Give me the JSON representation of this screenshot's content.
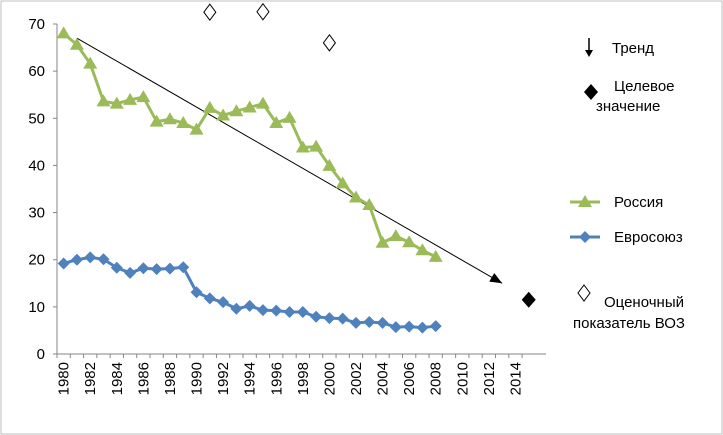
{
  "chart_data": {
    "type": "line",
    "x": [
      1980,
      1981,
      1982,
      1983,
      1984,
      1985,
      1986,
      1987,
      1988,
      1989,
      1990,
      1991,
      1992,
      1993,
      1994,
      1995,
      1996,
      1997,
      1998,
      1999,
      2000,
      2001,
      2002,
      2003,
      2004,
      2005,
      2006,
      2007,
      2008
    ],
    "xticks": [
      "1980",
      "1982",
      "1984",
      "1986",
      "1988",
      "1990",
      "1992",
      "1994",
      "1996",
      "1998",
      "2000",
      "2002",
      "2004",
      "2006",
      "2008",
      "2010",
      "2012",
      "2014"
    ],
    "yticks": [
      "0",
      "10",
      "20",
      "30",
      "40",
      "50",
      "60",
      "70"
    ],
    "xlim": [
      1979.5,
      2016.3
    ],
    "ylim": [
      0,
      70
    ],
    "series": [
      {
        "name": "Россия",
        "color": "#9bbb59",
        "marker": "triangle",
        "values": [
          68.0,
          65.6,
          61.6,
          53.6,
          53.1,
          53.9,
          54.5,
          49.3,
          49.8,
          49.0,
          47.6,
          52.2,
          50.6,
          51.5,
          52.3,
          53.1,
          49.0,
          50.1,
          43.8,
          44.0,
          39.9,
          36.2,
          33.2,
          31.6,
          23.6,
          25.0,
          23.7,
          22.0,
          20.6
        ]
      },
      {
        "name": "Евросоюз",
        "color": "#4f81bd",
        "marker": "diamond",
        "values": [
          19.2,
          20.0,
          20.5,
          20.1,
          18.3,
          17.2,
          18.2,
          18.0,
          18.1,
          18.4,
          13.1,
          11.8,
          11.0,
          9.6,
          10.2,
          9.3,
          9.2,
          8.9,
          8.9,
          7.9,
          7.6,
          7.5,
          6.6,
          6.8,
          6.6,
          5.7,
          5.8,
          5.6,
          5.9
        ]
      }
    ],
    "trend": {
      "x": [
        1981,
        2013
      ],
      "y": [
        67,
        15
      ]
    },
    "target": {
      "x": 2015,
      "y": 11.5
    },
    "who_estimates": [
      {
        "x": 1991,
        "y": 72.5
      },
      {
        "x": 1995,
        "y": 72.6
      },
      {
        "x": 2000,
        "y": 66.0
      }
    ],
    "legend": {
      "trend": "Тренд",
      "target_line1": "Целевое",
      "target_line2": "значение",
      "series1": "Россия",
      "series2": "Евросоюз",
      "who_line1": "Оценочный",
      "who_line2": "показатель ВОЗ"
    }
  }
}
